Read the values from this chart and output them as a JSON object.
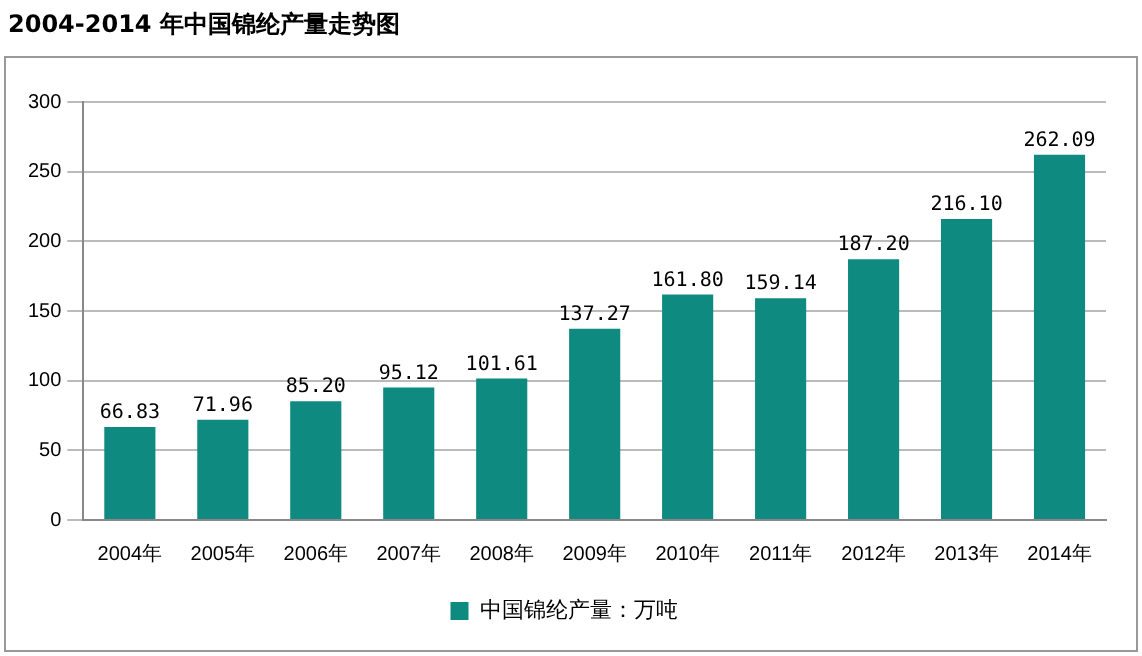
{
  "chart_data": {
    "type": "bar",
    "title": "2004-2014 年中国锦纶产量走势图",
    "categories": [
      "2004年",
      "2005年",
      "2006年",
      "2007年",
      "2008年",
      "2009年",
      "2010年",
      "2011年",
      "2012年",
      "2013年",
      "2014年"
    ],
    "series": [
      {
        "name": "中国锦纶产量：万吨",
        "color": "#0f8a80",
        "values": [
          66.83,
          71.96,
          85.2,
          95.12,
          101.61,
          137.27,
          161.8,
          159.14,
          187.2,
          216.1,
          262.09
        ],
        "value_labels": [
          "66.83",
          "71.96",
          "85.20",
          "95.12",
          "101.61",
          "137.27",
          "161.80",
          "159.14",
          "187.20",
          "216.10",
          "262.09"
        ]
      }
    ],
    "ylim": [
      0,
      300
    ],
    "yticks": [
      0,
      50,
      100,
      150,
      200,
      250,
      300
    ],
    "grid": "y",
    "legend": "bottom"
  }
}
